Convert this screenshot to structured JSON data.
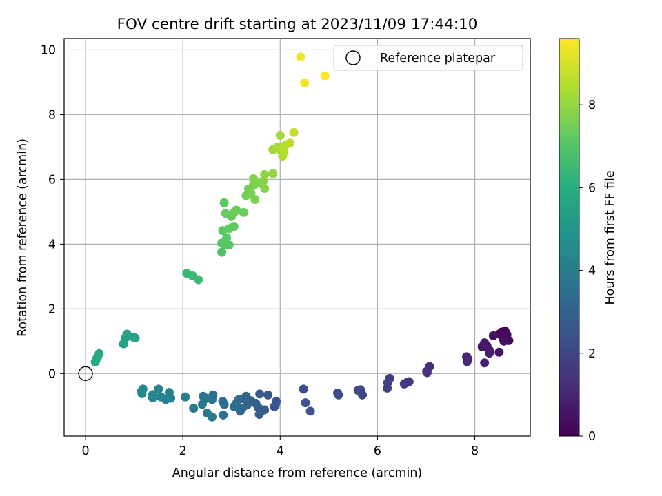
{
  "chart_data": {
    "type": "scatter",
    "title": "FOV centre drift starting at 2023/11/09 17:44:10",
    "xlabel": "Angular distance from reference (arcmin)",
    "ylabel": "Rotation from reference (arcmin)",
    "xlim": [
      -0.44,
      9.14
    ],
    "ylim": [
      -1.93,
      10.35
    ],
    "xticks": [
      0,
      2,
      4,
      6,
      8
    ],
    "yticks": [
      0,
      2,
      4,
      6,
      8,
      10
    ],
    "grid": true,
    "legend": {
      "position": "upper-right",
      "entries": [
        "Reference platepar"
      ]
    },
    "reference_point": {
      "x": 0,
      "y": 0,
      "label": "Reference platepar"
    },
    "colorbar": {
      "label": "Hours from first FF file",
      "min": 0,
      "max": 9.6,
      "ticks": [
        0,
        2,
        4,
        6,
        8
      ],
      "colormap": "viridis"
    },
    "series": [
      {
        "points": [
          {
            "x": 8.55,
            "y": 1.28,
            "c": 0.1
          },
          {
            "x": 8.62,
            "y": 1.32,
            "c": 0.1
          },
          {
            "x": 8.5,
            "y": 1.22,
            "c": 0.2
          },
          {
            "x": 8.66,
            "y": 1.2,
            "c": 0.2
          },
          {
            "x": 8.58,
            "y": 1.08,
            "c": 0.3
          },
          {
            "x": 8.7,
            "y": 1.02,
            "c": 0.3
          },
          {
            "x": 8.6,
            "y": 1.0,
            "c": 0.4
          },
          {
            "x": 8.38,
            "y": 1.17,
            "c": 0.4
          },
          {
            "x": 8.5,
            "y": 0.66,
            "c": 0.5
          },
          {
            "x": 8.25,
            "y": 0.85,
            "c": 0.6
          },
          {
            "x": 8.15,
            "y": 0.83,
            "c": 0.6
          },
          {
            "x": 8.2,
            "y": 0.95,
            "c": 0.7
          },
          {
            "x": 8.3,
            "y": 0.72,
            "c": 0.7
          },
          {
            "x": 8.3,
            "y": 0.63,
            "c": 0.8
          },
          {
            "x": 8.2,
            "y": 0.33,
            "c": 0.9
          },
          {
            "x": 7.83,
            "y": 0.52,
            "c": 1.0
          },
          {
            "x": 7.86,
            "y": 0.45,
            "c": 1.0
          },
          {
            "x": 7.84,
            "y": 0.37,
            "c": 1.1
          },
          {
            "x": 7.07,
            "y": 0.22,
            "c": 1.3
          },
          {
            "x": 7.01,
            "y": 0.07,
            "c": 1.3
          },
          {
            "x": 7.02,
            "y": 0.03,
            "c": 1.4
          },
          {
            "x": 6.65,
            "y": -0.25,
            "c": 1.5
          },
          {
            "x": 6.6,
            "y": -0.28,
            "c": 1.6
          },
          {
            "x": 6.55,
            "y": -0.32,
            "c": 1.6
          },
          {
            "x": 6.25,
            "y": -0.15,
            "c": 1.7
          },
          {
            "x": 6.21,
            "y": -0.28,
            "c": 1.8
          },
          {
            "x": 6.2,
            "y": -0.45,
            "c": 1.8
          },
          {
            "x": 5.65,
            "y": -0.5,
            "c": 2.0
          },
          {
            "x": 5.69,
            "y": -0.66,
            "c": 2.0
          },
          {
            "x": 5.6,
            "y": -0.52,
            "c": 2.1
          },
          {
            "x": 5.18,
            "y": -0.6,
            "c": 2.2
          },
          {
            "x": 5.2,
            "y": -0.66,
            "c": 2.2
          },
          {
            "x": 4.48,
            "y": -0.48,
            "c": 2.3
          },
          {
            "x": 4.52,
            "y": -0.9,
            "c": 2.4
          },
          {
            "x": 4.62,
            "y": -1.16,
            "c": 2.4
          },
          {
            "x": 3.92,
            "y": -0.86,
            "c": 2.5
          },
          {
            "x": 3.9,
            "y": -0.98,
            "c": 2.5
          },
          {
            "x": 3.88,
            "y": -1.02,
            "c": 2.6
          },
          {
            "x": 3.75,
            "y": -0.66,
            "c": 2.6
          },
          {
            "x": 3.58,
            "y": -0.63,
            "c": 2.7
          },
          {
            "x": 3.68,
            "y": -1.12,
            "c": 2.7
          },
          {
            "x": 3.62,
            "y": -1.15,
            "c": 2.8
          },
          {
            "x": 3.55,
            "y": -1.05,
            "c": 2.8
          },
          {
            "x": 3.57,
            "y": -1.26,
            "c": 2.9
          },
          {
            "x": 3.5,
            "y": -0.92,
            "c": 2.9
          },
          {
            "x": 3.4,
            "y": -0.84,
            "c": 3.0
          },
          {
            "x": 3.3,
            "y": -0.7,
            "c": 3.0
          },
          {
            "x": 3.25,
            "y": -0.78,
            "c": 3.1
          },
          {
            "x": 3.32,
            "y": -0.97,
            "c": 3.1
          },
          {
            "x": 3.22,
            "y": -1.07,
            "c": 3.2
          },
          {
            "x": 3.18,
            "y": -1.16,
            "c": 3.2
          },
          {
            "x": 3.15,
            "y": -0.8,
            "c": 3.3
          },
          {
            "x": 3.1,
            "y": -0.92,
            "c": 3.3
          },
          {
            "x": 3.05,
            "y": -1.02,
            "c": 3.4
          },
          {
            "x": 2.82,
            "y": -0.86,
            "c": 3.4
          },
          {
            "x": 2.85,
            "y": -0.95,
            "c": 3.5
          },
          {
            "x": 2.83,
            "y": -1.28,
            "c": 3.5
          },
          {
            "x": 2.62,
            "y": -0.66,
            "c": 3.6
          },
          {
            "x": 2.6,
            "y": -0.8,
            "c": 3.6
          },
          {
            "x": 2.48,
            "y": -0.77,
            "c": 3.7
          },
          {
            "x": 2.42,
            "y": -0.7,
            "c": 3.7
          },
          {
            "x": 2.4,
            "y": -0.95,
            "c": 3.8
          },
          {
            "x": 2.5,
            "y": -1.22,
            "c": 3.8
          },
          {
            "x": 2.6,
            "y": -1.34,
            "c": 3.9
          },
          {
            "x": 2.22,
            "y": -1.07,
            "c": 3.9
          },
          {
            "x": 2.05,
            "y": -0.72,
            "c": 4.0
          },
          {
            "x": 1.72,
            "y": -0.58,
            "c": 4.1
          },
          {
            "x": 1.75,
            "y": -0.76,
            "c": 4.1
          },
          {
            "x": 1.65,
            "y": -0.8,
            "c": 4.2
          },
          {
            "x": 1.55,
            "y": -0.72,
            "c": 4.2
          },
          {
            "x": 1.5,
            "y": -0.48,
            "c": 4.3
          },
          {
            "x": 1.38,
            "y": -0.65,
            "c": 4.3
          },
          {
            "x": 1.38,
            "y": -0.75,
            "c": 4.4
          },
          {
            "x": 1.18,
            "y": -0.48,
            "c": 4.4
          },
          {
            "x": 1.15,
            "y": -0.55,
            "c": 4.5
          },
          {
            "x": 1.16,
            "y": -0.62,
            "c": 4.5
          },
          {
            "x": 0.98,
            "y": 1.13,
            "c": 5.4
          },
          {
            "x": 0.85,
            "y": 1.22,
            "c": 5.4
          },
          {
            "x": 0.82,
            "y": 1.1,
            "c": 5.5
          },
          {
            "x": 0.78,
            "y": 0.92,
            "c": 5.5
          },
          {
            "x": 1.02,
            "y": 1.1,
            "c": 5.6
          },
          {
            "x": 0.28,
            "y": 0.62,
            "c": 5.8
          },
          {
            "x": 0.25,
            "y": 0.52,
            "c": 5.8
          },
          {
            "x": 0.22,
            "y": 0.44,
            "c": 5.9
          },
          {
            "x": 0.2,
            "y": 0.36,
            "c": 5.9
          },
          {
            "x": 2.08,
            "y": 3.1,
            "c": 6.4
          },
          {
            "x": 2.2,
            "y": 3.02,
            "c": 6.4
          },
          {
            "x": 2.32,
            "y": 2.9,
            "c": 6.5
          },
          {
            "x": 2.8,
            "y": 3.75,
            "c": 6.9
          },
          {
            "x": 2.85,
            "y": 3.98,
            "c": 6.9
          },
          {
            "x": 2.8,
            "y": 4.03,
            "c": 7.0
          },
          {
            "x": 2.95,
            "y": 3.97,
            "c": 7.0
          },
          {
            "x": 2.82,
            "y": 4.42,
            "c": 7.1
          },
          {
            "x": 2.9,
            "y": 4.2,
            "c": 7.1
          },
          {
            "x": 2.95,
            "y": 4.48,
            "c": 7.2
          },
          {
            "x": 3.05,
            "y": 4.55,
            "c": 7.2
          },
          {
            "x": 2.85,
            "y": 5.28,
            "c": 7.2
          },
          {
            "x": 2.88,
            "y": 4.95,
            "c": 7.3
          },
          {
            "x": 3.0,
            "y": 4.85,
            "c": 7.3
          },
          {
            "x": 3.05,
            "y": 4.98,
            "c": 7.4
          },
          {
            "x": 3.1,
            "y": 5.05,
            "c": 7.4
          },
          {
            "x": 3.25,
            "y": 4.98,
            "c": 7.4
          },
          {
            "x": 3.3,
            "y": 5.5,
            "c": 7.5
          },
          {
            "x": 3.35,
            "y": 5.7,
            "c": 7.5
          },
          {
            "x": 3.4,
            "y": 5.58,
            "c": 7.6
          },
          {
            "x": 3.45,
            "y": 5.82,
            "c": 7.6
          },
          {
            "x": 3.45,
            "y": 6.02,
            "c": 7.7
          },
          {
            "x": 3.48,
            "y": 5.38,
            "c": 7.7
          },
          {
            "x": 3.55,
            "y": 5.88,
            "c": 7.7
          },
          {
            "x": 3.65,
            "y": 5.95,
            "c": 7.8
          },
          {
            "x": 3.68,
            "y": 5.72,
            "c": 7.8
          },
          {
            "x": 3.68,
            "y": 6.15,
            "c": 7.9
          },
          {
            "x": 3.85,
            "y": 6.18,
            "c": 8.0
          },
          {
            "x": 3.85,
            "y": 6.92,
            "c": 8.2
          },
          {
            "x": 3.95,
            "y": 7.0,
            "c": 8.3
          },
          {
            "x": 4.0,
            "y": 7.36,
            "c": 8.3
          },
          {
            "x": 4.02,
            "y": 6.88,
            "c": 8.4
          },
          {
            "x": 4.05,
            "y": 6.72,
            "c": 8.4
          },
          {
            "x": 4.08,
            "y": 6.85,
            "c": 8.5
          },
          {
            "x": 4.1,
            "y": 7.05,
            "c": 8.5
          },
          {
            "x": 4.2,
            "y": 7.12,
            "c": 8.6
          },
          {
            "x": 4.28,
            "y": 7.45,
            "c": 8.7
          },
          {
            "x": 4.42,
            "y": 9.78,
            "c": 9.4
          },
          {
            "x": 4.5,
            "y": 8.98,
            "c": 9.5
          },
          {
            "x": 4.92,
            "y": 9.2,
            "c": 9.6
          }
        ]
      }
    ]
  }
}
